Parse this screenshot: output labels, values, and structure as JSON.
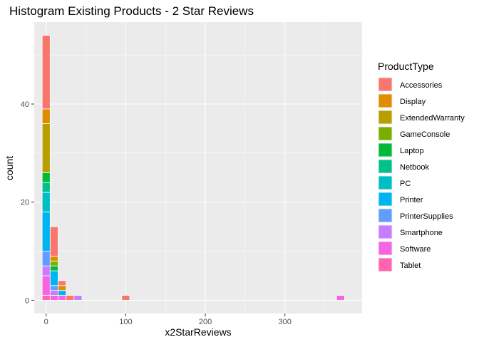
{
  "chart_data": {
    "type": "bar",
    "subtype": "stacked-histogram",
    "title": "Histogram Existing Products - 2 Star Reviews",
    "xlabel": "x2StarReviews",
    "ylabel": "count",
    "xlim": [
      -15,
      397
    ],
    "ylim": [
      -2.7,
      56.7
    ],
    "x_ticks": [
      0,
      100,
      200,
      300
    ],
    "x_tick_labels": [
      "0",
      "100",
      "200",
      "300"
    ],
    "y_ticks": [
      0,
      20,
      40
    ],
    "y_tick_labels": [
      "0",
      "20",
      "40"
    ],
    "grid": true,
    "bin_width": 10,
    "legend": {
      "title": "ProductType",
      "position": "right",
      "entries": [
        "Accessories",
        "Display",
        "ExtendedWarranty",
        "GameConsole",
        "Laptop",
        "Netbook",
        "PC",
        "Printer",
        "PrinterSupplies",
        "Smartphone",
        "Software",
        "Tablet"
      ]
    },
    "colors": [
      "#F8766D",
      "#DE8C00",
      "#B79F00",
      "#7CAE00",
      "#00BA38",
      "#00C08B",
      "#00BFC4",
      "#00B4F0",
      "#619CFF",
      "#C77CFF",
      "#F564E3",
      "#FF64B0"
    ],
    "bins": [
      0,
      10,
      20,
      30,
      40,
      100,
      370
    ],
    "series": [
      {
        "name": "Accessories",
        "values": [
          15,
          6,
          1,
          1,
          0,
          1,
          0
        ]
      },
      {
        "name": "Display",
        "values": [
          3,
          1,
          1,
          0,
          0,
          0,
          0
        ]
      },
      {
        "name": "ExtendedWarranty",
        "values": [
          10,
          0,
          0,
          0,
          0,
          0,
          0
        ]
      },
      {
        "name": "GameConsole",
        "values": [
          0,
          1,
          0,
          0,
          0,
          0,
          0
        ]
      },
      {
        "name": "Laptop",
        "values": [
          2,
          1,
          0,
          0,
          0,
          0,
          0
        ]
      },
      {
        "name": "Netbook",
        "values": [
          2,
          0,
          0,
          0,
          0,
          0,
          0
        ]
      },
      {
        "name": "PC",
        "values": [
          4,
          0,
          0,
          0,
          0,
          0,
          0
        ]
      },
      {
        "name": "Printer",
        "values": [
          8,
          3,
          1,
          0,
          0,
          0,
          0
        ]
      },
      {
        "name": "PrinterSupplies",
        "values": [
          3,
          1,
          0,
          0,
          0,
          0,
          0
        ]
      },
      {
        "name": "Smartphone",
        "values": [
          2,
          1,
          0,
          0,
          1,
          0,
          0
        ]
      },
      {
        "name": "Software",
        "values": [
          4,
          1,
          1,
          0,
          0,
          0,
          1
        ]
      },
      {
        "name": "Tablet",
        "values": [
          1,
          0,
          0,
          0,
          0,
          0,
          0
        ]
      }
    ]
  }
}
